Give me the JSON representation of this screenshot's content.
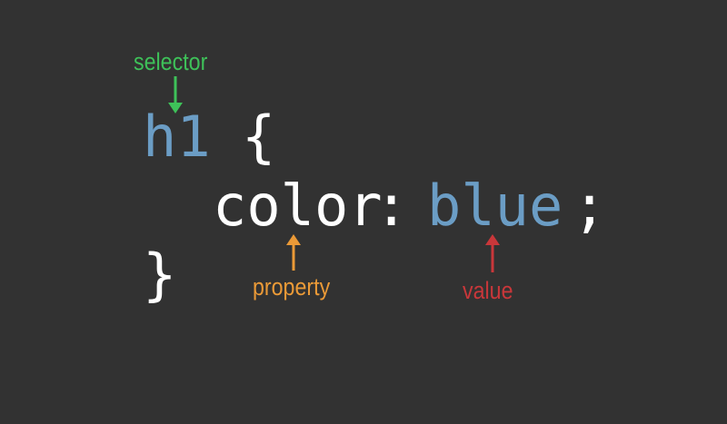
{
  "code": {
    "selector": "h1",
    "open_brace": "{",
    "property": "color",
    "colon": ":",
    "value": "blue",
    "semicolon": ";",
    "close_brace": "}"
  },
  "annotations": {
    "selector_label": "selector",
    "property_label": "property",
    "value_label": "value"
  },
  "colors": {
    "background": "#323232",
    "code_text": "#ffffff",
    "code_highlight": "#6b9dc5",
    "selector_annotation": "#3ec159",
    "property_annotation": "#eb9a37",
    "value_annotation": "#c9373a"
  }
}
